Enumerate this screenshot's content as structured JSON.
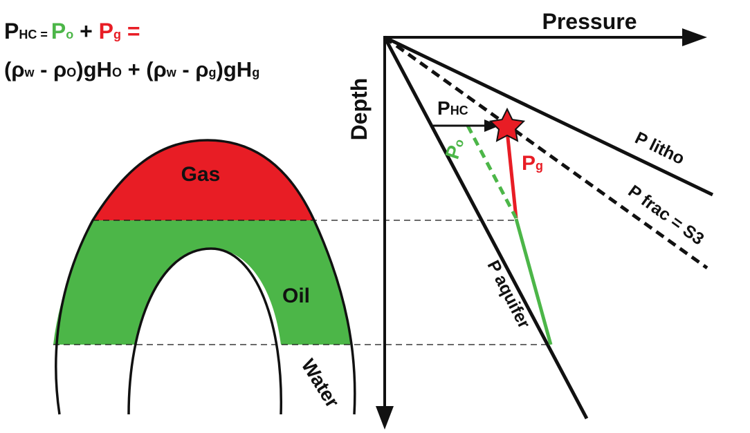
{
  "colors": {
    "gas": "#E81D25",
    "oil": "#4CB648",
    "line": "#111111",
    "background": "#FFFFFF"
  },
  "formula": {
    "line1": {
      "p": "P",
      "hc_sub": "HC",
      "eq1": " = ",
      "po": "P",
      "o_sub": "o",
      "plus": " + ",
      "pg": "P",
      "g_sub": "g",
      "eq2": " ="
    },
    "line2": {
      "part1": "(ρ",
      "w_sub1": "w",
      "part2": " - ρ",
      "o_sub": "O",
      "part3": ")gH",
      "o_sub2": "O",
      "part4": " + (ρ",
      "w_sub2": "w",
      "part5": " - ρ",
      "g_sub": "g",
      "part6": ")gH",
      "g_sub2": "g"
    }
  },
  "reservoir": {
    "gas_label": "Gas",
    "oil_label": "Oil",
    "water_label": "Water"
  },
  "graph": {
    "x_axis_label": "Pressure",
    "y_axis_label": "Depth",
    "lines": {
      "litho": "P litho",
      "frac": "P frac = S3",
      "aquifer": "P aquifer"
    },
    "overpressure": {
      "p": "P",
      "sub": "HC"
    },
    "oil_pressure": {
      "p": "P",
      "sub": "o"
    },
    "gas_pressure": {
      "p": "P",
      "sub": "g"
    },
    "star_icon": "star-icon"
  }
}
